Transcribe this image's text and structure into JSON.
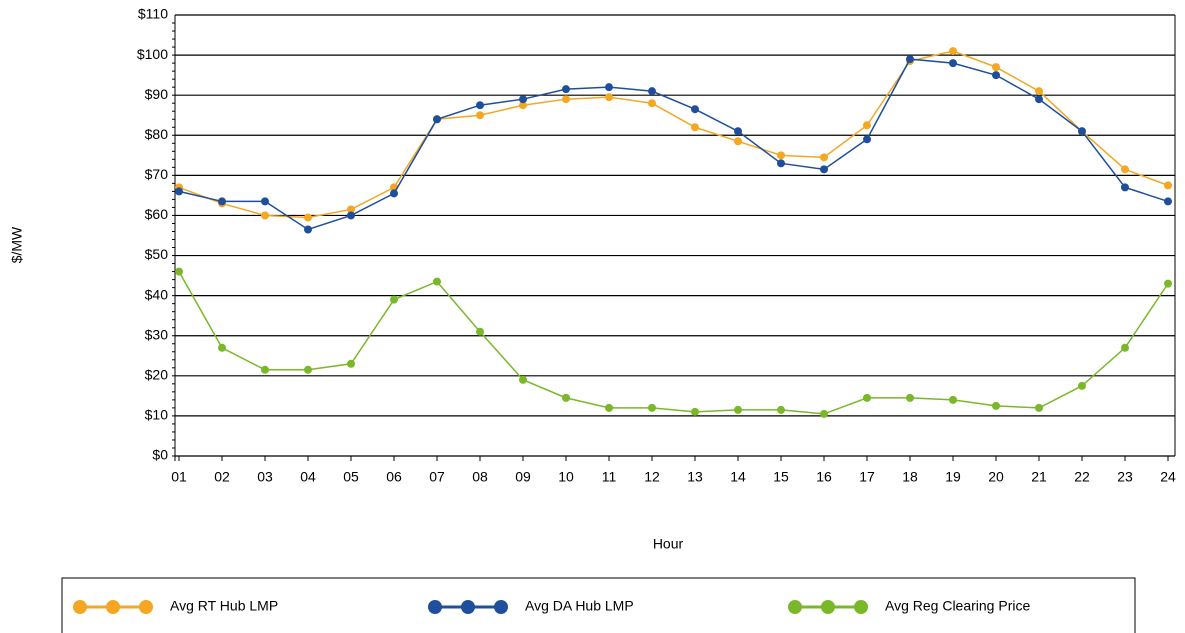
{
  "chart_data": {
    "type": "line",
    "x_label": "Hour",
    "y_label": "$/MW",
    "categories": [
      "01",
      "02",
      "03",
      "04",
      "05",
      "06",
      "07",
      "08",
      "09",
      "10",
      "11",
      "12",
      "13",
      "14",
      "15",
      "16",
      "17",
      "18",
      "19",
      "20",
      "21",
      "22",
      "23",
      "24"
    ],
    "series": [
      {
        "name": "Avg RT Hub LMP",
        "color": "#f5a623",
        "values": [
          67,
          63,
          60,
          59.5,
          61.5,
          67,
          84,
          85,
          87.5,
          89,
          89.5,
          88,
          82,
          78.5,
          75,
          74.5,
          82.5,
          98.5,
          101,
          97,
          91,
          81,
          71.5,
          67.5
        ]
      },
      {
        "name": "Avg DA Hub LMP",
        "color": "#1f4e9c",
        "values": [
          66,
          63.5,
          63.5,
          56.5,
          60,
          65.5,
          84,
          87.5,
          89,
          91.5,
          92,
          91,
          86.5,
          81,
          73,
          71.5,
          79,
          99,
          98,
          95,
          89,
          81,
          67,
          63.5
        ]
      },
      {
        "name": "Avg Reg Clearing Price",
        "color": "#7ab829",
        "values": [
          46,
          27,
          21.5,
          21.5,
          23,
          39,
          43.5,
          31,
          19,
          14.5,
          12,
          12,
          11,
          11.5,
          11.5,
          10.5,
          14.5,
          14.5,
          14,
          12.5,
          12,
          17.5,
          27,
          43
        ]
      }
    ],
    "ylim": [
      0,
      110
    ],
    "yticks": [
      {
        "value": 0,
        "label": "$0"
      },
      {
        "value": 10,
        "label": "$10"
      },
      {
        "value": 20,
        "label": "$20"
      },
      {
        "value": 30,
        "label": "$30"
      },
      {
        "value": 40,
        "label": "$40"
      },
      {
        "value": 50,
        "label": "$50"
      },
      {
        "value": 60,
        "label": "$60"
      },
      {
        "value": 70,
        "label": "$70"
      },
      {
        "value": 80,
        "label": "$80"
      },
      {
        "value": 90,
        "label": "$90"
      },
      {
        "value": 100,
        "label": "$100"
      },
      {
        "value": 110,
        "label": "$110"
      }
    ],
    "grid": true,
    "legend": "bottom"
  }
}
